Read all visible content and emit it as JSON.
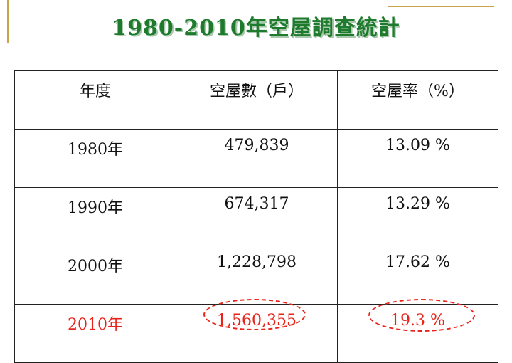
{
  "title": "1980-2010年空屋調查統計",
  "table": {
    "headers": [
      "年度",
      "空屋數（戶）",
      "空屋率（%）"
    ],
    "rows": [
      {
        "year": "1980年",
        "count": "479,839",
        "rate": "13.09 %"
      },
      {
        "year": "1990年",
        "count": "674,317",
        "rate": "13.29 %"
      },
      {
        "year": "2000年",
        "count": "1,228,798",
        "rate": "17.62 %"
      },
      {
        "year": "2010年",
        "count": "1,560,355",
        "rate": "19.3 %"
      }
    ]
  },
  "colors": {
    "title": "#1e7a2c",
    "highlight": "#e8241a",
    "accent_rule": "#c9a34a"
  }
}
